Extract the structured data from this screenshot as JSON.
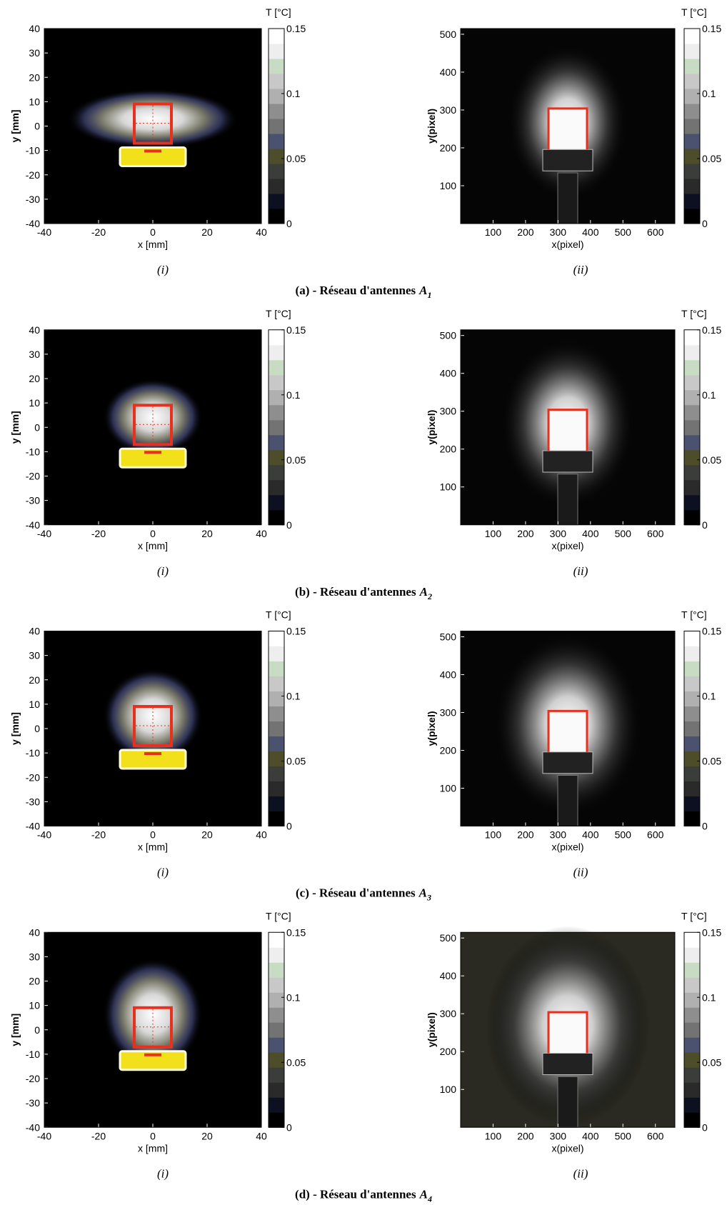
{
  "figure": {
    "thermal_axes": {
      "xlabel": "x [mm]",
      "ylabel": "y [mm]",
      "xlim": [
        -40,
        40
      ],
      "ylim": [
        -40,
        40
      ],
      "xticks": [
        -40,
        -20,
        0,
        20,
        40
      ],
      "yticks": [
        -40,
        -30,
        -20,
        -10,
        0,
        10,
        20,
        30,
        40
      ]
    },
    "camera_axes": {
      "xlabel": "x(pixel)",
      "ylabel": "y(pixel)",
      "xlim": [
        0,
        660
      ],
      "ylim": [
        0,
        515
      ],
      "xticks": [
        100,
        200,
        300,
        400,
        500,
        600
      ],
      "yticks": [
        100,
        200,
        300,
        400,
        500
      ]
    },
    "colorbar": {
      "label": "T [°C]",
      "lim": [
        0,
        0.15
      ],
      "ticks": [
        0,
        0.05,
        0.1,
        0.15
      ],
      "colors": [
        "#000000",
        "#0d1020",
        "#2a2a2a",
        "#3a3d3a",
        "#4d4d2a",
        "#4a5270",
        "#737373",
        "#8e8e8e",
        "#b0b0b0",
        "#c8c8c8",
        "#c8dcc4",
        "#eeeeee",
        "#ffffff"
      ]
    },
    "subcaptions": [
      "(i)",
      "(ii)"
    ],
    "panels": [
      {
        "label": "(a) - Réseau d'antennes",
        "symbol": "A",
        "subscript": "1"
      },
      {
        "label": "(b) - Réseau d'antennes",
        "symbol": "A",
        "subscript": "2"
      },
      {
        "label": "(c) - Réseau d'antennes",
        "symbol": "A",
        "subscript": "3"
      },
      {
        "label": "(d) - Réseau d'antennes",
        "symbol": "A",
        "subscript": "4"
      }
    ]
  }
}
